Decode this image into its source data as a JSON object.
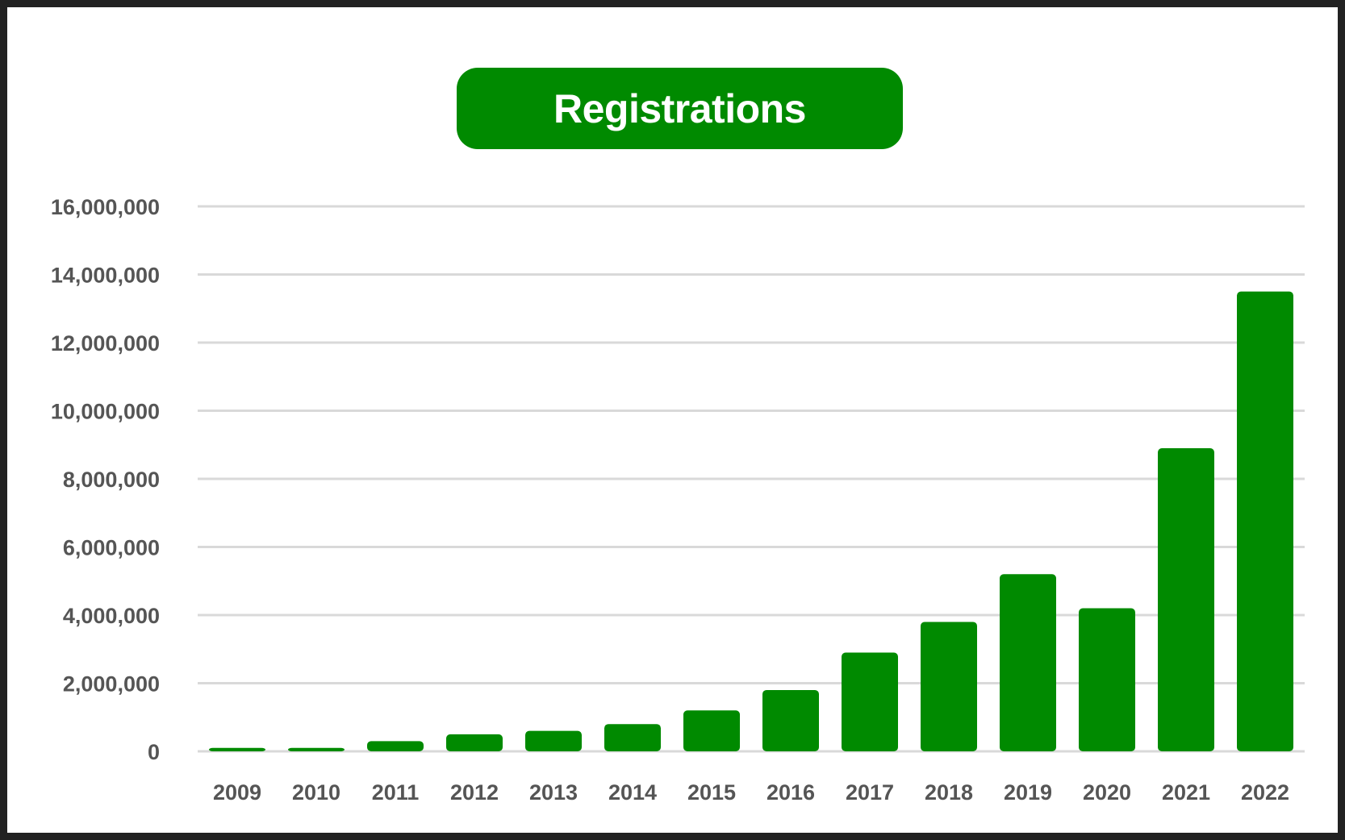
{
  "title": "Registrations",
  "colors": {
    "bar": "#008a00",
    "grid": "#d9d9d9",
    "tick_text": "#555555",
    "frame": "#222222",
    "background": "#ffffff"
  },
  "chart_data": {
    "type": "bar",
    "title": "Registrations",
    "xlabel": "",
    "ylabel": "",
    "ylim": [
      0,
      16000000
    ],
    "grid": true,
    "legend": "none",
    "yticks": [
      0,
      2000000,
      4000000,
      6000000,
      8000000,
      10000000,
      12000000,
      14000000,
      16000000
    ],
    "ytick_labels": [
      "0",
      "2,000,000",
      "4,000,000",
      "6,000,000",
      "8,000,000",
      "10,000,000",
      "12,000,000",
      "14,000,000",
      "16,000,000"
    ],
    "categories": [
      "2009",
      "2010",
      "2011",
      "2012",
      "2013",
      "2014",
      "2015",
      "2016",
      "2017",
      "2018",
      "2019",
      "2020",
      "2021",
      "2022"
    ],
    "values": [
      100000,
      100000,
      300000,
      500000,
      600000,
      800000,
      1200000,
      1800000,
      2900000,
      3800000,
      5200000,
      4200000,
      8900000,
      13500000
    ]
  }
}
